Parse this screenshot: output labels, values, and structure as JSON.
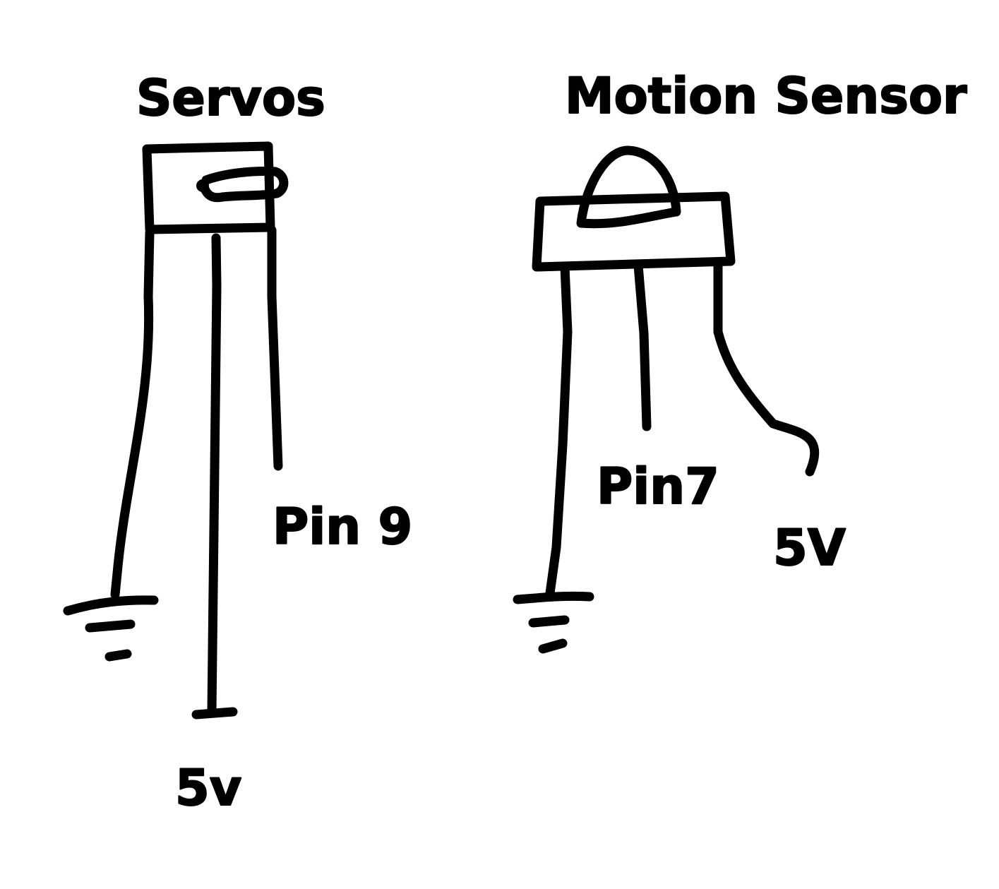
{
  "servo": {
    "title": "Servos",
    "signal_label": "Pin 9",
    "power_label": "5v"
  },
  "motion_sensor": {
    "title": "Motion Sensor",
    "signal_label": "Pin7",
    "power_label": "5V"
  },
  "ink_color": "#000000",
  "background_color": "#ffffff"
}
